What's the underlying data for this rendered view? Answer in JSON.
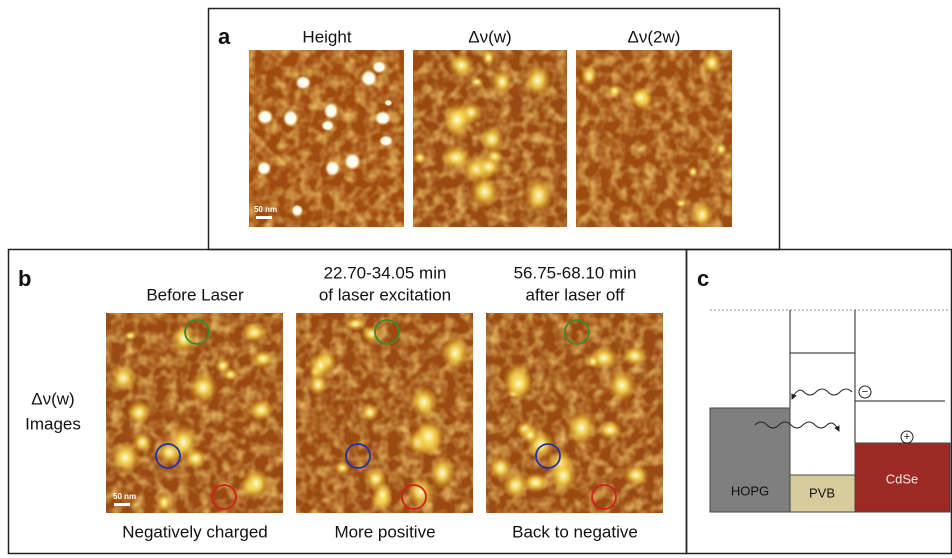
{
  "panel_a": {
    "label": "a",
    "titles": [
      "Height",
      "Δν(w)",
      "Δν(2w)"
    ],
    "scale_bar": "50 nm"
  },
  "panel_b": {
    "label": "b",
    "titles": [
      [
        "Before Laser"
      ],
      [
        "22.70-34.05 min",
        "of laser excitation"
      ],
      [
        "56.75-68.10 min",
        "after laser off"
      ]
    ],
    "row_label": [
      "Δν(w)",
      "Images"
    ],
    "scale_bar": "50 nm",
    "captions": [
      "Negatively charged",
      "More positive",
      "Back to negative"
    ]
  },
  "panel_c": {
    "label": "c",
    "layers": [
      "HOPG",
      "PVB",
      "CdSe"
    ],
    "electron": "−",
    "hole": "+"
  }
}
